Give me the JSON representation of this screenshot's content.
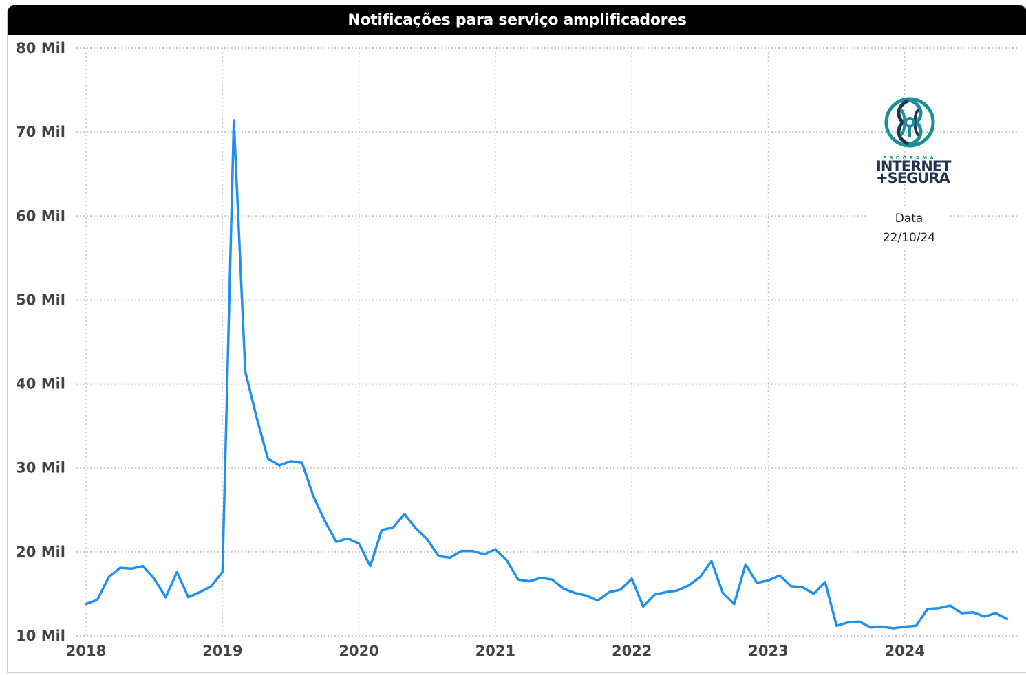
{
  "title": "Notificações para serviço amplificadores",
  "logo": {
    "icon": "internet-segura-circuit-logo-icon",
    "small_text": "PROGRAMA",
    "line1": "INTERNET",
    "line2": "+SEGURA",
    "color_teal": "#1a8f97",
    "color_navy": "#1f3552"
  },
  "date_box": {
    "label": "Data",
    "value": "22/10/24"
  },
  "colors": {
    "line": "#1f8ff0",
    "grid": "#c8c8c8",
    "title_bg": "#000000"
  },
  "chart_data": {
    "type": "line",
    "title": "Notificações para serviço amplificadores",
    "xlabel": "",
    "ylabel": "",
    "ylim": [
      10,
      80
    ],
    "y_ticks": [
      10,
      20,
      30,
      40,
      50,
      60,
      70,
      80
    ],
    "y_tick_labels": [
      "10 Mil",
      "20 Mil",
      "30 Mil",
      "40 Mil",
      "50 Mil",
      "60 Mil",
      "70 Mil",
      "80 Mil"
    ],
    "x_tick_labels": [
      "2018",
      "2019",
      "2020",
      "2021",
      "2022",
      "2023",
      "2024"
    ],
    "x_start_year": 2018,
    "grid": true,
    "series": [
      {
        "values": [
          13.8,
          14.3,
          17.0,
          18.1,
          18.0,
          18.3,
          16.8,
          14.6,
          17.6,
          14.6,
          15.2,
          15.9,
          17.6,
          71.4,
          41.5,
          36.0,
          31.1,
          30.3,
          30.8,
          30.6,
          26.6,
          23.7,
          21.2,
          21.6,
          21.0,
          18.3,
          22.6,
          22.9,
          24.5,
          22.8,
          21.5,
          19.5,
          19.3,
          20.1,
          20.1,
          19.7,
          20.3,
          19.0,
          16.7,
          16.5,
          16.9,
          16.7,
          15.6,
          15.1,
          14.8,
          14.2,
          15.2,
          15.5,
          16.8,
          13.5,
          14.9,
          15.2,
          15.4,
          16.0,
          17.0,
          18.9,
          15.1,
          13.8,
          18.5,
          16.3,
          16.6,
          17.2,
          15.9,
          15.8,
          15.0,
          16.4,
          11.2,
          11.6,
          11.7,
          11.0,
          11.1,
          10.9,
          11.1,
          11.2,
          13.2,
          13.3,
          13.6,
          12.7,
          12.8,
          12.3,
          12.7,
          12.0
        ]
      }
    ]
  }
}
